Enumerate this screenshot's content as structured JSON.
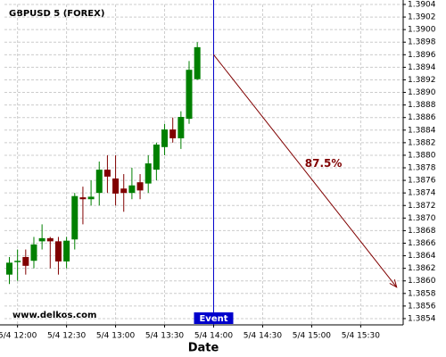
{
  "chart_data": {
    "type": "candlestick",
    "title": "GBPUSD 5 (FOREX)",
    "xlabel": "Date",
    "watermark": "www.delkos.com",
    "x": [
      "5/4 11:55",
      "5/4 12:00",
      "5/4 12:05",
      "5/4 12:10",
      "5/4 12:15",
      "5/4 12:20",
      "5/4 12:25",
      "5/4 12:30",
      "5/4 12:35",
      "5/4 12:40",
      "5/4 12:45",
      "5/4 12:50",
      "5/4 12:55",
      "5/4 13:00",
      "5/4 13:05",
      "5/4 13:10",
      "5/4 13:15",
      "5/4 13:20",
      "5/4 13:25",
      "5/4 13:30",
      "5/4 13:35",
      "5/4 13:40",
      "5/4 13:45",
      "5/4 13:50"
    ],
    "open": [
      1.3861,
      1.3863,
      1.38638,
      1.38632,
      1.38663,
      1.38668,
      1.38663,
      1.38631,
      1.38666,
      1.38733,
      1.3873,
      1.3874,
      1.38777,
      1.38763,
      1.38747,
      1.3874,
      1.38757,
      1.38755,
      1.38777,
      1.38813,
      1.38841,
      1.38827,
      1.38858,
      1.38921
    ],
    "high": [
      1.38638,
      1.3865,
      1.3865,
      1.3867,
      1.3869,
      1.3867,
      1.3867,
      1.3867,
      1.3874,
      1.3875,
      1.3876,
      1.3879,
      1.388,
      1.388,
      1.3877,
      1.3878,
      1.3877,
      1.388,
      1.3882,
      1.3885,
      1.3886,
      1.3887,
      1.3895,
      1.3898
    ],
    "low": [
      1.38595,
      1.386,
      1.3861,
      1.3862,
      1.3865,
      1.3862,
      1.3861,
      1.3862,
      1.3865,
      1.3869,
      1.3872,
      1.3872,
      1.3874,
      1.3872,
      1.3871,
      1.3873,
      1.3873,
      1.3874,
      1.3876,
      1.388,
      1.3882,
      1.3881,
      1.3885,
      1.3892
    ],
    "close": [
      1.38629,
      1.38632,
      1.38624,
      1.38658,
      1.38668,
      1.38663,
      1.38631,
      1.38664,
      1.38735,
      1.3873,
      1.38734,
      1.38777,
      1.38766,
      1.38739,
      1.3874,
      1.38752,
      1.38744,
      1.38787,
      1.38817,
      1.38841,
      1.38827,
      1.38861,
      1.38936,
      1.38972
    ],
    "up_color": "#008000",
    "down_color": "#800000",
    "xlim": [
      "5/4 11:52",
      "5/4 15:56"
    ],
    "xticks": [
      "5/4 12:00",
      "5/4 12:30",
      "5/4 13:00",
      "5/4 13:30",
      "5/4 14:00",
      "5/4 14:30",
      "5/4 15:00",
      "5/4 15:30"
    ],
    "ylim": [
      1.3853,
      1.3904
    ],
    "yticks": [
      1.3854,
      1.3856,
      1.3858,
      {
        "value": 1.386,
        "label": "1.3860"
      },
      1.3862,
      1.3864,
      1.3866,
      1.3868,
      {
        "value": 1.387,
        "label": "1.3870"
      },
      1.3872,
      1.3874,
      1.3876,
      1.3878,
      {
        "value": 1.388,
        "label": "1.3880"
      },
      1.3882,
      1.3884,
      1.3886,
      1.3888,
      {
        "value": 1.389,
        "label": "1.3890"
      },
      1.3892,
      1.3894,
      1.3896,
      1.3898,
      {
        "value": 1.39,
        "label": "1.3900"
      },
      1.3902,
      1.3904
    ],
    "grid": true,
    "event": {
      "x": "5/4 14:00",
      "label": "Event",
      "color": "#0000cc"
    },
    "arrow": {
      "from": [
        "5/4 14:00",
        1.3896
      ],
      "to": [
        "5/4 15:52",
        1.3859
      ],
      "label": "87.5%",
      "color": "#800000"
    }
  }
}
